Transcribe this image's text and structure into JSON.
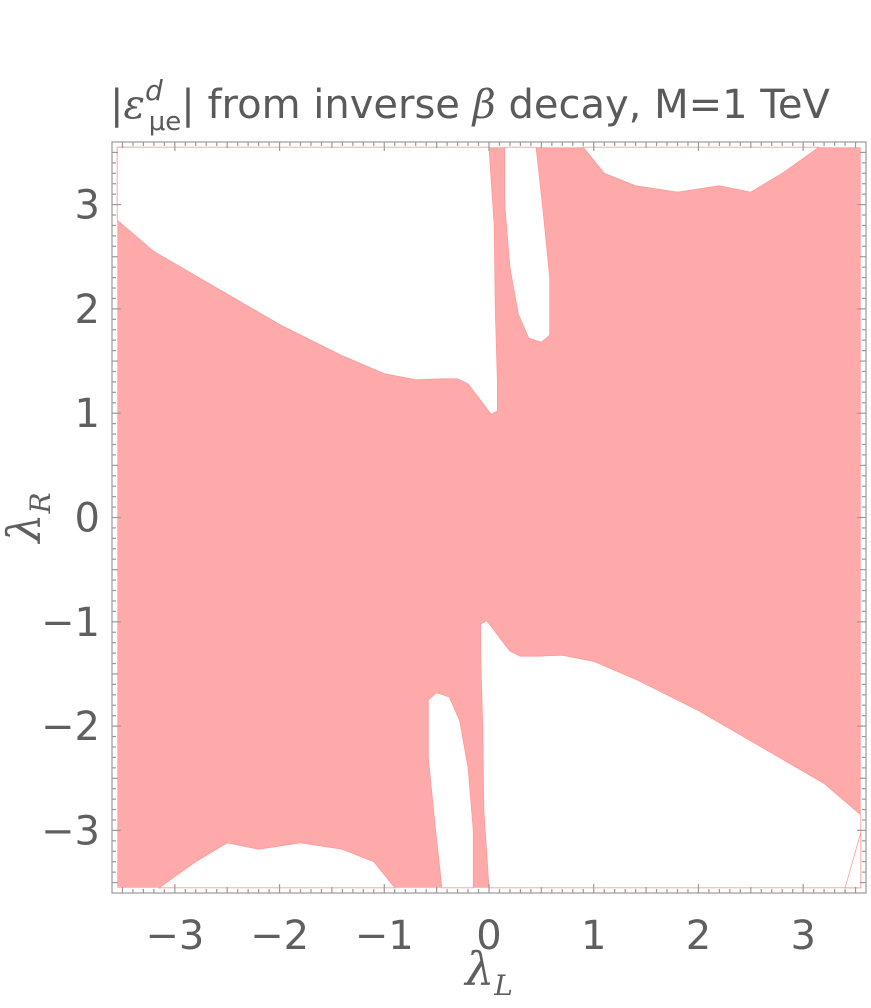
{
  "chart_data": {
    "type": "region",
    "title": {
      "pre": "|",
      "symbol": "ε",
      "superscript": "d",
      "subscript": "μe",
      "post": "| from inverse ",
      "beta": "β",
      "rest": " decay, M=1 TeV"
    },
    "xlabel": {
      "main": "λ",
      "sub": "L"
    },
    "ylabel": {
      "main": "λ",
      "sub": "R"
    },
    "xlim": [
      -3.6,
      3.6
    ],
    "ylim": [
      -3.6,
      3.6
    ],
    "xticks": [
      {
        "value": -3,
        "label": "−3"
      },
      {
        "value": -2,
        "label": "−2"
      },
      {
        "value": -1,
        "label": "−1"
      },
      {
        "value": 0,
        "label": "0"
      },
      {
        "value": 1,
        "label": "1"
      },
      {
        "value": 2,
        "label": "2"
      },
      {
        "value": 3,
        "label": "3"
      }
    ],
    "yticks": [
      {
        "value": -3,
        "label": "−3"
      },
      {
        "value": -2,
        "label": "−2"
      },
      {
        "value": -1,
        "label": "−1"
      },
      {
        "value": 0,
        "label": "0"
      },
      {
        "value": 1,
        "label": "1"
      },
      {
        "value": 2,
        "label": "2"
      },
      {
        "value": 3,
        "label": "3"
      }
    ],
    "colors": {
      "region": "#ffaaaa",
      "edge": "#ff9a9a",
      "frame": "#9a9a9a",
      "text": "#5f5f5f"
    },
    "grid": false,
    "region_description": "shaded = allowed",
    "excluded_regions": [
      {
        "name": "top-left",
        "boundary": [
          [
            -3.55,
            3.55
          ],
          [
            -3.4,
            3.55
          ],
          [
            -3.55,
            3.02
          ]
        ]
      },
      {
        "name": "upper-left",
        "boundary": [
          [
            -3.55,
            2.85
          ],
          [
            -3.2,
            2.55
          ],
          [
            -2.6,
            2.2
          ],
          [
            -2.0,
            1.85
          ],
          [
            -1.4,
            1.55
          ],
          [
            -1.0,
            1.38
          ],
          [
            -0.7,
            1.32
          ],
          [
            -0.45,
            1.33
          ],
          [
            -0.3,
            1.33
          ],
          [
            -0.2,
            1.28
          ],
          [
            -0.1,
            1.15
          ],
          [
            0.02,
            0.99
          ],
          [
            0.08,
            1.02
          ],
          [
            0.08,
            1.3
          ],
          [
            0.06,
            2.0
          ],
          [
            0.05,
            2.8
          ],
          [
            0.0,
            3.55
          ],
          [
            -3.55,
            3.55
          ]
        ]
      },
      {
        "name": "upper-slot",
        "boundary": [
          [
            0.15,
            3.55
          ],
          [
            0.15,
            3.0
          ],
          [
            0.2,
            2.4
          ],
          [
            0.28,
            1.95
          ],
          [
            0.38,
            1.72
          ],
          [
            0.5,
            1.68
          ],
          [
            0.58,
            1.75
          ],
          [
            0.58,
            2.3
          ],
          [
            0.52,
            2.9
          ],
          [
            0.45,
            3.55
          ]
        ]
      },
      {
        "name": "top-right",
        "boundary": [
          [
            0.9,
            3.55
          ],
          [
            1.1,
            3.3
          ],
          [
            1.4,
            3.18
          ],
          [
            1.8,
            3.12
          ],
          [
            2.2,
            3.18
          ],
          [
            2.5,
            3.12
          ],
          [
            2.8,
            3.3
          ],
          [
            3.15,
            3.55
          ]
        ]
      },
      {
        "name": "lower-right",
        "boundary": [
          [
            3.55,
            -2.85
          ],
          [
            3.2,
            -2.55
          ],
          [
            2.6,
            -2.2
          ],
          [
            2.0,
            -1.85
          ],
          [
            1.4,
            -1.55
          ],
          [
            1.0,
            -1.38
          ],
          [
            0.7,
            -1.32
          ],
          [
            0.45,
            -1.33
          ],
          [
            0.3,
            -1.33
          ],
          [
            0.2,
            -1.28
          ],
          [
            0.1,
            -1.15
          ],
          [
            -0.02,
            -0.99
          ],
          [
            -0.08,
            -1.02
          ],
          [
            -0.08,
            -1.3
          ],
          [
            -0.06,
            -2.0
          ],
          [
            -0.05,
            -2.8
          ],
          [
            0.0,
            -3.55
          ],
          [
            3.55,
            -3.55
          ]
        ]
      },
      {
        "name": "lower-slot",
        "boundary": [
          [
            -0.15,
            -3.55
          ],
          [
            -0.15,
            -3.0
          ],
          [
            -0.2,
            -2.4
          ],
          [
            -0.28,
            -1.95
          ],
          [
            -0.38,
            -1.72
          ],
          [
            -0.5,
            -1.68
          ],
          [
            -0.58,
            -1.75
          ],
          [
            -0.58,
            -2.3
          ],
          [
            -0.52,
            -2.9
          ],
          [
            -0.45,
            -3.55
          ]
        ]
      },
      {
        "name": "bottom-left",
        "boundary": [
          [
            -0.9,
            -3.55
          ],
          [
            -1.1,
            -3.3
          ],
          [
            -1.4,
            -3.18
          ],
          [
            -1.8,
            -3.12
          ],
          [
            -2.2,
            -3.18
          ],
          [
            -2.5,
            -3.12
          ],
          [
            -2.8,
            -3.3
          ],
          [
            -3.15,
            -3.55
          ]
        ]
      },
      {
        "name": "bottom-right",
        "boundary": [
          [
            3.55,
            -3.55
          ],
          [
            3.4,
            -3.55
          ],
          [
            3.55,
            -3.02
          ]
        ]
      }
    ]
  }
}
